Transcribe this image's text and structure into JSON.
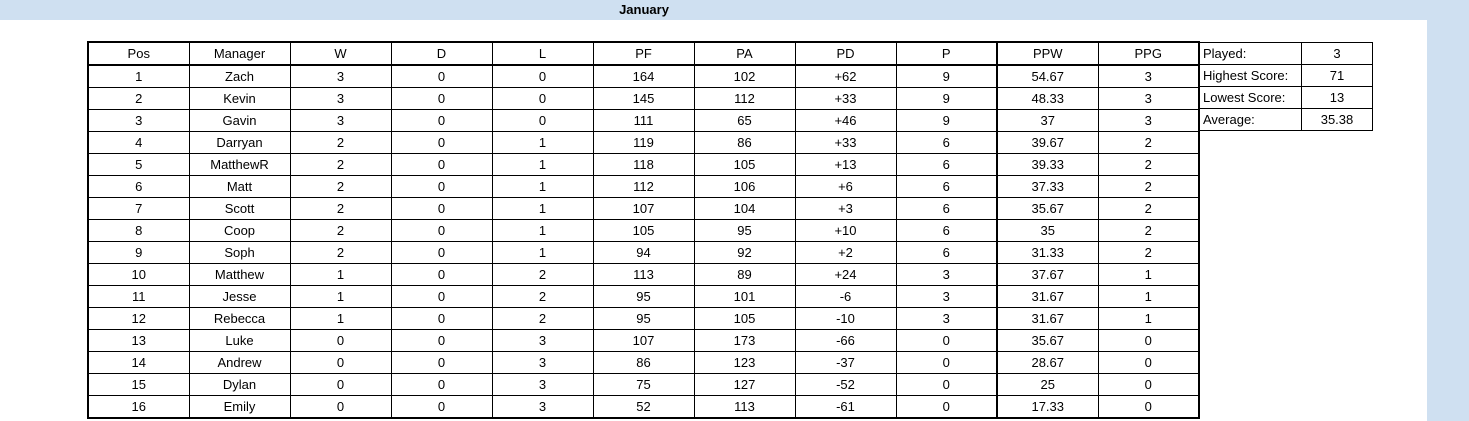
{
  "sheet": {
    "title": "January"
  },
  "standings": {
    "headers": [
      "Pos",
      "Manager",
      "W",
      "D",
      "L",
      "PF",
      "PA",
      "PD",
      "P",
      "PPW",
      "PPG"
    ],
    "rows": [
      [
        "1",
        "Zach",
        "3",
        "0",
        "0",
        "164",
        "102",
        "+62",
        "9",
        "54.67",
        "3"
      ],
      [
        "2",
        "Kevin",
        "3",
        "0",
        "0",
        "145",
        "112",
        "+33",
        "9",
        "48.33",
        "3"
      ],
      [
        "3",
        "Gavin",
        "3",
        "0",
        "0",
        "111",
        "65",
        "+46",
        "9",
        "37",
        "3"
      ],
      [
        "4",
        "Darryan",
        "2",
        "0",
        "1",
        "119",
        "86",
        "+33",
        "6",
        "39.67",
        "2"
      ],
      [
        "5",
        "MatthewR",
        "2",
        "0",
        "1",
        "118",
        "105",
        "+13",
        "6",
        "39.33",
        "2"
      ],
      [
        "6",
        "Matt",
        "2",
        "0",
        "1",
        "112",
        "106",
        "+6",
        "6",
        "37.33",
        "2"
      ],
      [
        "7",
        "Scott",
        "2",
        "0",
        "1",
        "107",
        "104",
        "+3",
        "6",
        "35.67",
        "2"
      ],
      [
        "8",
        "Coop",
        "2",
        "0",
        "1",
        "105",
        "95",
        "+10",
        "6",
        "35",
        "2"
      ],
      [
        "9",
        "Soph",
        "2",
        "0",
        "1",
        "94",
        "92",
        "+2",
        "6",
        "31.33",
        "2"
      ],
      [
        "10",
        "Matthew",
        "1",
        "0",
        "2",
        "113",
        "89",
        "+24",
        "3",
        "37.67",
        "1"
      ],
      [
        "11",
        "Jesse",
        "1",
        "0",
        "2",
        "95",
        "101",
        "-6",
        "3",
        "31.67",
        "1"
      ],
      [
        "12",
        "Rebecca",
        "1",
        "0",
        "2",
        "95",
        "105",
        "-10",
        "3",
        "31.67",
        "1"
      ],
      [
        "13",
        "Luke",
        "0",
        "0",
        "3",
        "107",
        "173",
        "-66",
        "0",
        "35.67",
        "0"
      ],
      [
        "14",
        "Andrew",
        "0",
        "0",
        "3",
        "86",
        "123",
        "-37",
        "0",
        "28.67",
        "0"
      ],
      [
        "15",
        "Dylan",
        "0",
        "0",
        "3",
        "75",
        "127",
        "-52",
        "0",
        "25",
        "0"
      ],
      [
        "16",
        "Emily",
        "0",
        "0",
        "3",
        "52",
        "113",
        "-61",
        "0",
        "17.33",
        "0"
      ]
    ]
  },
  "stats": [
    {
      "label": "Played:",
      "value": "3"
    },
    {
      "label": "Highest Score:",
      "value": "71"
    },
    {
      "label": "Lowest Score:",
      "value": "13"
    },
    {
      "label": "Average:",
      "value": "35.38"
    }
  ],
  "colors": {
    "background": "#cfe0f1",
    "sheet": "#ffffff",
    "grid": "#000000"
  }
}
